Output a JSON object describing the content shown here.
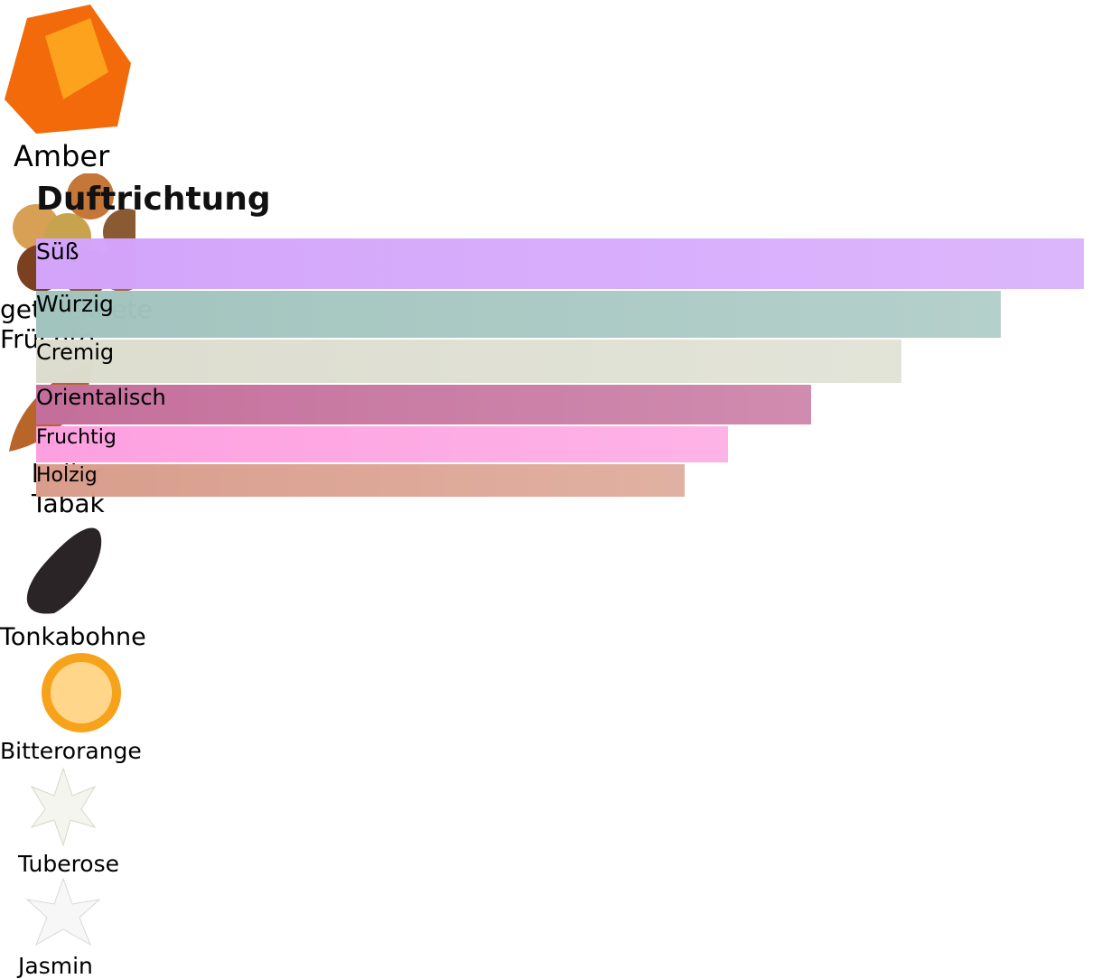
{
  "section": {
    "title": "Duftrichtung",
    "accords": [
      {
        "label": "Süß",
        "strength": 100,
        "color": "#d3a4fb"
      },
      {
        "label": "Würzig",
        "strength": 92.1,
        "color": "#a2c4be"
      },
      {
        "label": "Cremig",
        "strength": 82.6,
        "color": "#dcddcf"
      },
      {
        "label": "Orientalisch",
        "strength": 74,
        "color": "#c46f9b"
      },
      {
        "label": "Fruchtig",
        "strength": 66,
        "color": "#fda0e0"
      },
      {
        "label": "Holzig",
        "strength": 61.9,
        "color": "#d99d8b"
      }
    ],
    "notes": [
      "Amber",
      "getrocknete Früchte",
      "heller Tabak",
      "Tonkabohne",
      "Bitterorange",
      "Tuberose",
      "Jasmin"
    ]
  }
}
